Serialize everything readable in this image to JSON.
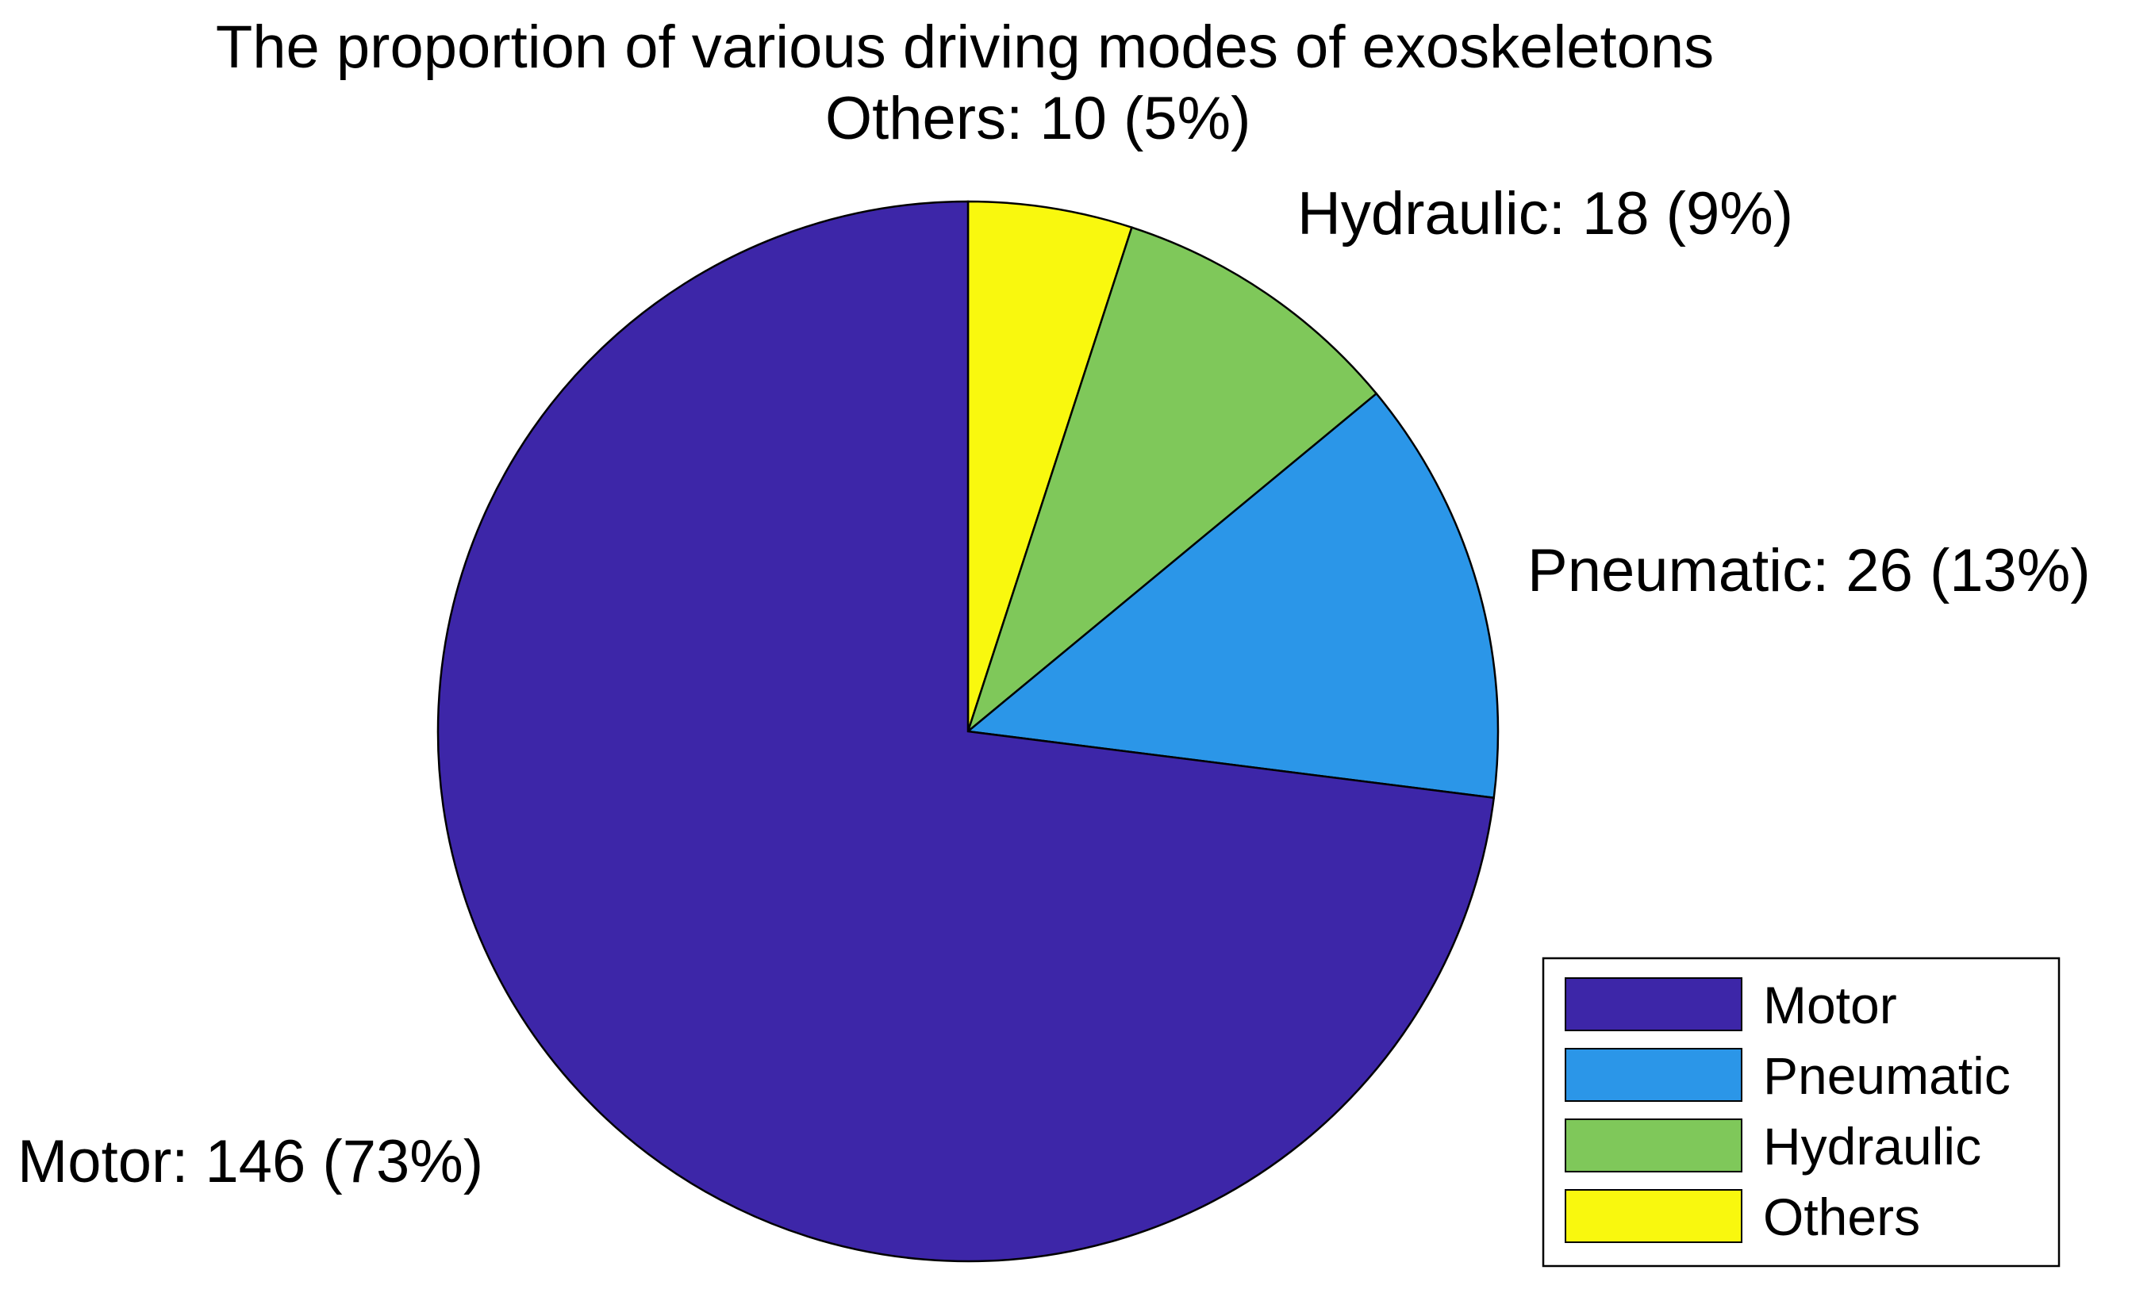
{
  "chart_data": {
    "type": "pie",
    "title": "The proportion of various driving modes of exoskeletons",
    "start": "top",
    "direction": "clockwise",
    "slice_order": [
      "Others",
      "Hydraulic",
      "Pneumatic",
      "Motor"
    ],
    "slices": [
      {
        "name": "Motor",
        "value": 146,
        "percent": "73%",
        "label": "Motor: 146 (73%)",
        "color": "#3d26a8"
      },
      {
        "name": "Pneumatic",
        "value": 26,
        "percent": "13%",
        "label": "Pneumatic: 26 (13%)",
        "color": "#2b96e8"
      },
      {
        "name": "Hydraulic",
        "value": 18,
        "percent": "9%",
        "label": "Hydraulic: 18 (9%)",
        "color": "#7fc85a"
      },
      {
        "name": "Others",
        "value": 10,
        "percent": "5%",
        "label": "Others: 10 (5%)",
        "color": "#f9f80e"
      }
    ],
    "legend": {
      "placement": "bottom-right",
      "entries": [
        "Motor",
        "Pneumatic",
        "Hydraulic",
        "Others"
      ]
    }
  }
}
